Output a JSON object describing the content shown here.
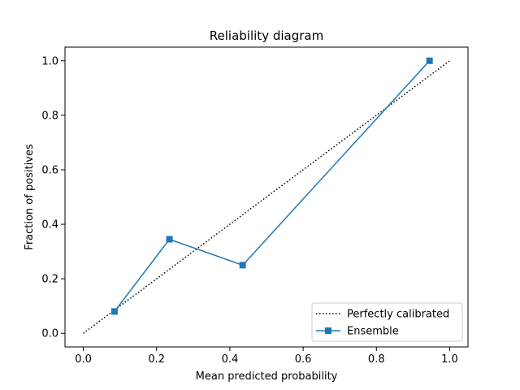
{
  "chart_data": {
    "type": "line",
    "title": "Reliability diagram",
    "xlabel": "Mean predicted probability",
    "ylabel": "Fraction of positives",
    "xlim": [
      -0.05,
      1.05
    ],
    "ylim": [
      -0.05,
      1.05
    ],
    "xticks": [
      0.0,
      0.2,
      0.4,
      0.6,
      0.8,
      1.0
    ],
    "yticks": [
      0.0,
      0.2,
      0.4,
      0.6,
      0.8,
      1.0
    ],
    "xtick_labels": [
      "0.0",
      "0.2",
      "0.4",
      "0.6",
      "0.8",
      "1.0"
    ],
    "ytick_labels": [
      "0.0",
      "0.2",
      "0.4",
      "0.6",
      "0.8",
      "1.0"
    ],
    "grid": false,
    "legend_position": "bottom-right",
    "series": [
      {
        "name": "Perfectly calibrated",
        "style": "dotted",
        "color": "#000000",
        "marker": "none",
        "x": [
          0.0,
          1.0
        ],
        "y": [
          0.0,
          1.0
        ]
      },
      {
        "name": "Ensemble",
        "style": "solid",
        "color": "#1f77b4",
        "marker": "square",
        "x": [
          0.085,
          0.235,
          0.435,
          0.945
        ],
        "y": [
          0.08,
          0.345,
          0.25,
          1.0
        ]
      }
    ]
  }
}
